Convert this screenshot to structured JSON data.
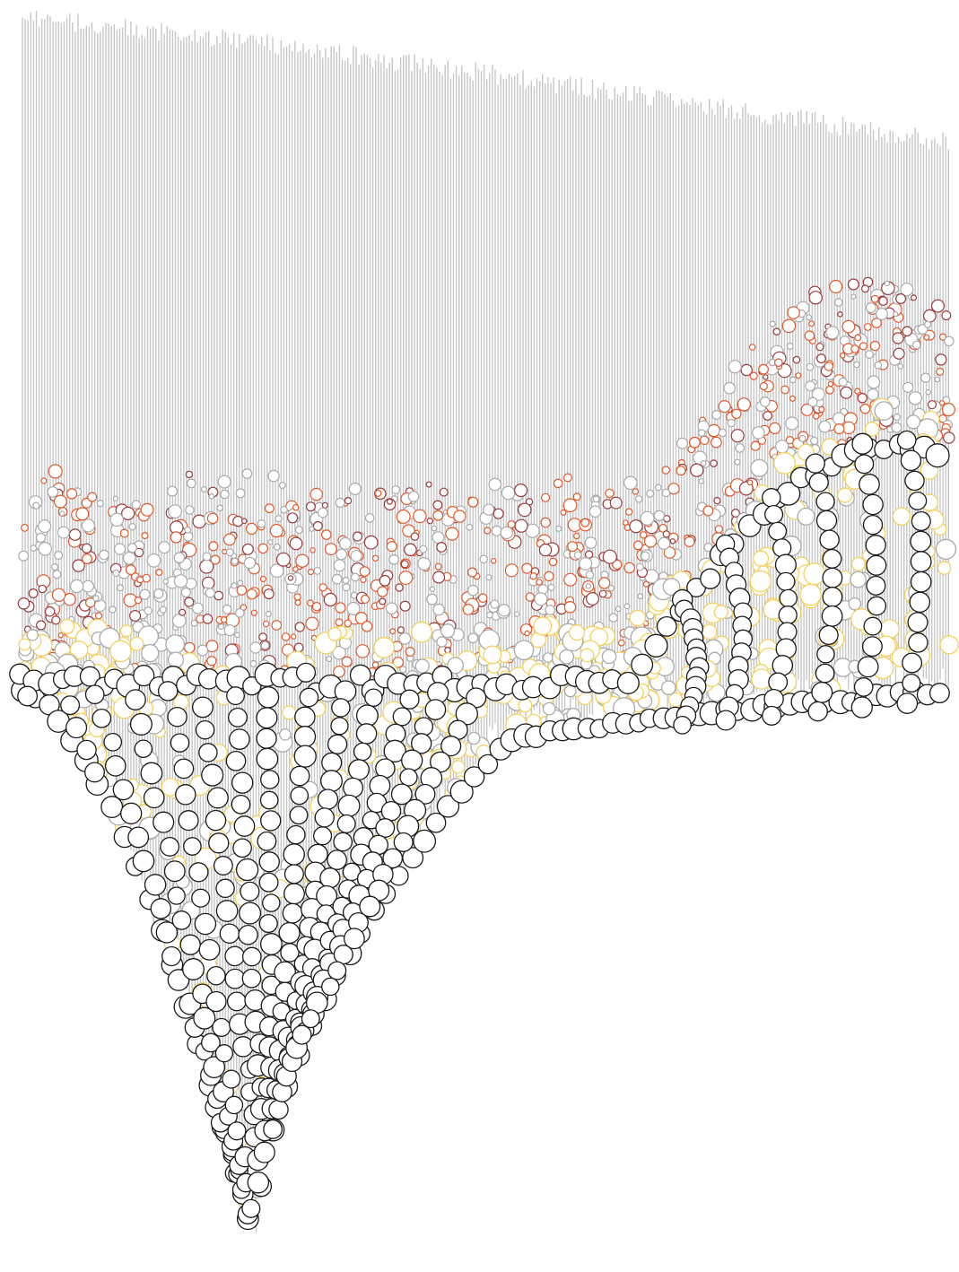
{
  "artwork": {
    "background": "#ffffff",
    "palette": {
      "stem": "#c6c7c9",
      "node_black": "#1a1a1a",
      "node_yellow": "#f6d15f",
      "node_orange": "#e2592a",
      "node_gray": "#a9aaac",
      "node_maroon": "#9c3b3b"
    }
  }
}
